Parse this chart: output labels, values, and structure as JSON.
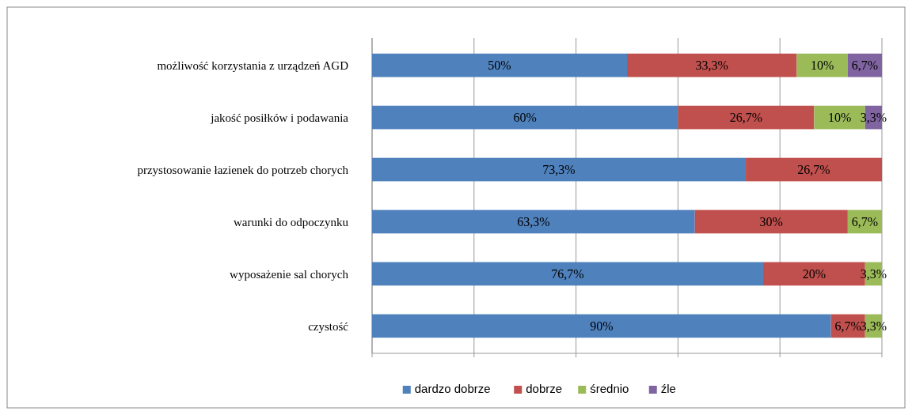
{
  "chart_data": {
    "type": "bar",
    "orientation": "horizontal",
    "stacked": true,
    "categories": [
      "możliwość korzystania z urządzeń AGD",
      "jakość posiłków i podawania",
      "przystosowanie łazienek do potrzeb chorych",
      "warunki do odpoczynku",
      "wyposażenie sal chorych",
      "czystość"
    ],
    "series": [
      {
        "name": "dardzo dobrze",
        "color": "#4f81bd",
        "values": [
          50,
          60,
          73.3,
          63.3,
          76.7,
          90
        ],
        "value_labels": [
          "50%",
          "60%",
          "73,3%",
          "63,3%",
          "76,7%",
          "90%"
        ]
      },
      {
        "name": "dobrze",
        "color": "#c0504d",
        "values": [
          33.3,
          26.7,
          26.7,
          30,
          20,
          6.7
        ],
        "value_labels": [
          "33,3%",
          "26,7%",
          "26,7%",
          "30%",
          "20%",
          "6,7%"
        ]
      },
      {
        "name": "średnio",
        "color": "#9bbb59",
        "values": [
          10,
          10,
          null,
          6.7,
          3.3,
          3.3
        ],
        "value_labels": [
          "10%",
          "10%",
          null,
          "6,7%",
          "3,3%",
          "3,3%"
        ]
      },
      {
        "name": "źle",
        "color": "#8064a2",
        "values": [
          6.7,
          3.3,
          null,
          null,
          null,
          null
        ],
        "value_labels": [
          "6,7%",
          "3,3%",
          null,
          null,
          null,
          null
        ]
      }
    ],
    "xlim": [
      0,
      100
    ],
    "xticks": [
      {
        "value": 0,
        "label": null
      },
      {
        "value": 20,
        "label": null
      },
      {
        "value": 40,
        "label": null
      },
      {
        "value": 60,
        "label": null
      },
      {
        "value": 80,
        "label": null
      },
      {
        "value": 100,
        "label": null
      }
    ],
    "tick_labels": "y",
    "grid": "x",
    "legend": "bottom"
  }
}
